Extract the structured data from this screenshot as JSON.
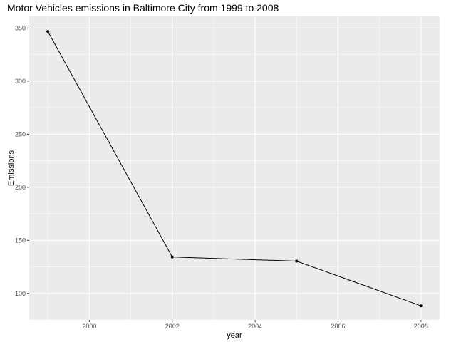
{
  "chart_data": {
    "type": "line",
    "title": "Motor Vehicles emissions in Baltimore City from 1999 to 2008",
    "xlabel": "year",
    "ylabel": "Emissions",
    "x": [
      1999,
      2002,
      2005,
      2008
    ],
    "series": [
      {
        "values": [
          346.8,
          134.3,
          130.4,
          88.3
        ]
      }
    ],
    "xlim": [
      1998.55,
      2008.45
    ],
    "ylim": [
      75,
      361
    ],
    "x_ticks": [
      2000,
      2002,
      2004,
      2006,
      2008
    ],
    "y_ticks": [
      100,
      150,
      200,
      250,
      300,
      350
    ],
    "x_tick_labels": [
      "2000",
      "2002",
      "2004",
      "2006",
      "2008"
    ],
    "y_tick_labels": [
      "100",
      "150",
      "200",
      "250",
      "300",
      "350"
    ],
    "grid": true,
    "markers": true,
    "colors": {
      "panel": "#ebebeb",
      "grid": "#ffffff",
      "line": "#000000"
    }
  }
}
